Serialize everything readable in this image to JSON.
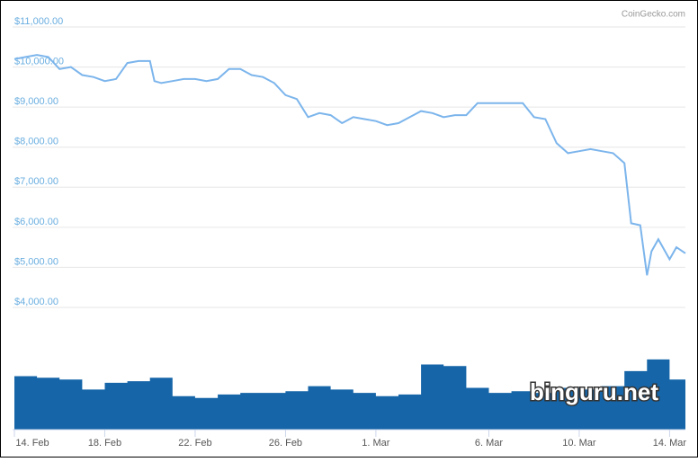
{
  "credit": "CoinGecko.com",
  "watermark": "binguru.net",
  "chart_data": [
    {
      "type": "line",
      "x": [
        0,
        0.5,
        1,
        1.5,
        2,
        2.5,
        3,
        3.5,
        4,
        4.5,
        5,
        5.5,
        6,
        6.2,
        6.5,
        7,
        7.5,
        8,
        8.5,
        9,
        9.5,
        10,
        10.5,
        11,
        11.5,
        12,
        12.5,
        13,
        13.5,
        14,
        14.5,
        15,
        15.5,
        16,
        16.5,
        17,
        17.5,
        18,
        18.5,
        19,
        19.5,
        20,
        20.5,
        21,
        21.5,
        22,
        22.5,
        23,
        23.5,
        24,
        24.5,
        25,
        25.5,
        26,
        26.5,
        27,
        27.3,
        27.7,
        28,
        28.2,
        28.5,
        29,
        29.3,
        29.7
      ],
      "values": [
        10200,
        10250,
        10300,
        10250,
        9950,
        10000,
        9800,
        9750,
        9650,
        9700,
        10100,
        10150,
        10150,
        9650,
        9600,
        9650,
        9700,
        9700,
        9650,
        9700,
        9950,
        9950,
        9800,
        9750,
        9600,
        9300,
        9200,
        8750,
        8850,
        8800,
        8600,
        8750,
        8700,
        8650,
        8550,
        8600,
        8750,
        8900,
        8850,
        8750,
        8800,
        8800,
        9100,
        9100,
        9100,
        9100,
        9100,
        8750,
        8700,
        8100,
        7850,
        7900,
        7950,
        7900,
        7850,
        7600,
        6100,
        6050,
        4800,
        5400,
        5700,
        5200,
        5500,
        5350
      ],
      "color": "#7cb5ec",
      "xlim": [
        0,
        29.7
      ],
      "xticks": [
        {
          "value": 0,
          "label": "14. Feb"
        },
        {
          "value": 4,
          "label": "18. Feb"
        },
        {
          "value": 8,
          "label": "22. Feb"
        },
        {
          "value": 12,
          "label": "26. Feb"
        },
        {
          "value": 16,
          "label": "1. Mar"
        },
        {
          "value": 21,
          "label": "6. Mar"
        },
        {
          "value": 25,
          "label": "10. Mar"
        },
        {
          "value": 29,
          "label": "14. Mar"
        }
      ],
      "ylim": [
        4000,
        11000
      ],
      "yticks": [
        {
          "value": 4000,
          "label": "$4,000.00"
        },
        {
          "value": 5000,
          "label": "$5,000.00"
        },
        {
          "value": 6000,
          "label": "$6,000.00"
        },
        {
          "value": 7000,
          "label": "$7,000.00"
        },
        {
          "value": 8000,
          "label": "$8,000.00"
        },
        {
          "value": 9000,
          "label": "$9,000.00"
        },
        {
          "value": 10000,
          "label": "$10,000.00"
        },
        {
          "value": 11000,
          "label": "$11,000.00"
        }
      ],
      "grid": true
    },
    {
      "type": "area",
      "x": [
        0,
        1,
        2,
        3,
        4,
        5,
        6,
        7,
        8,
        9,
        10,
        11,
        12,
        13,
        14,
        15,
        16,
        17,
        18,
        19,
        20,
        21,
        22,
        23,
        24,
        25,
        26,
        27,
        28,
        29,
        29.7
      ],
      "values": [
        64,
        62,
        60,
        48,
        56,
        58,
        62,
        40,
        38,
        42,
        44,
        44,
        46,
        52,
        48,
        44,
        40,
        42,
        78,
        76,
        50,
        44,
        46,
        44,
        50,
        48,
        52,
        70,
        84,
        60,
        48
      ],
      "color": "#1565a8",
      "ylim": [
        0,
        100
      ]
    }
  ]
}
